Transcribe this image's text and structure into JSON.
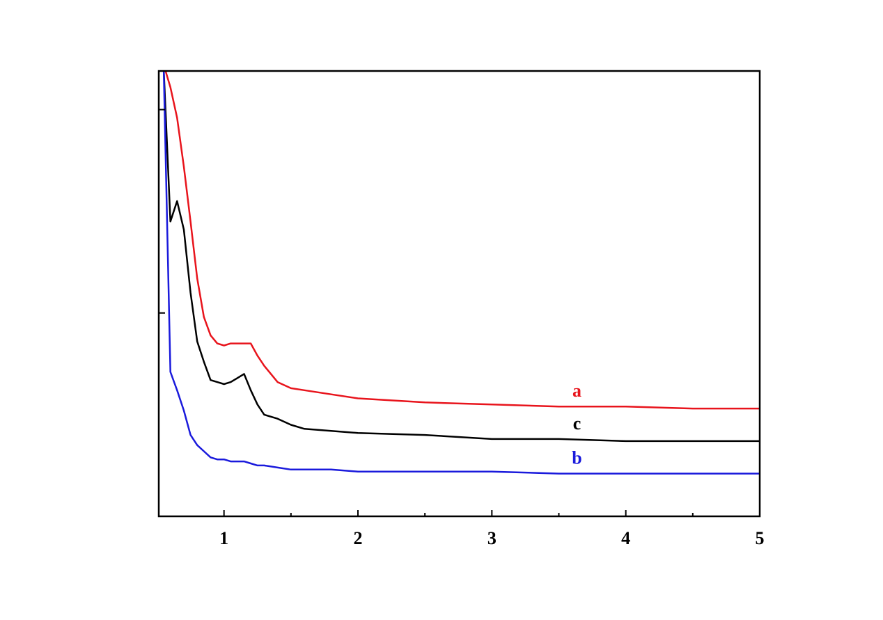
{
  "chart_data": {
    "type": "line",
    "x": [
      0.55,
      0.6,
      0.65,
      0.7,
      0.75,
      0.8,
      0.85,
      0.9,
      0.95,
      1.0,
      1.05,
      1.1,
      1.15,
      1.2,
      1.25,
      1.3,
      1.4,
      1.5,
      1.6,
      1.8,
      2.0,
      2.5,
      3,
      3.5,
      4,
      4.5,
      5
    ],
    "series": [
      {
        "name": "a",
        "color": "#e8141c",
        "values": [
          2.22,
          2.11,
          1.96,
          1.72,
          1.45,
          1.17,
          0.98,
          0.89,
          0.85,
          0.84,
          0.85,
          0.85,
          0.85,
          0.85,
          0.79,
          0.74,
          0.66,
          0.63,
          0.62,
          0.6,
          0.58,
          0.56,
          0.55,
          0.54,
          0.54,
          0.53,
          0.53
        ]
      },
      {
        "name": "c",
        "color": "#000000",
        "values": [
          2.2,
          1.45,
          1.55,
          1.41,
          1.1,
          0.86,
          0.76,
          0.67,
          0.66,
          0.65,
          0.66,
          0.68,
          0.7,
          0.62,
          0.55,
          0.5,
          0.48,
          0.45,
          0.43,
          0.42,
          0.41,
          0.4,
          0.38,
          0.38,
          0.37,
          0.37,
          0.37
        ]
      },
      {
        "name": "b",
        "color": "#1a1adc",
        "values": [
          2.2,
          0.71,
          0.62,
          0.52,
          0.4,
          0.35,
          0.32,
          0.29,
          0.28,
          0.28,
          0.27,
          0.27,
          0.27,
          0.26,
          0.25,
          0.25,
          0.24,
          0.23,
          0.23,
          0.23,
          0.22,
          0.22,
          0.22,
          0.21,
          0.21,
          0.21,
          0.21
        ]
      }
    ],
    "xlim": [
      0.513,
      5
    ],
    "xticks": [
      1,
      2,
      3,
      4,
      5
    ],
    "xticks_minor": [
      1.5,
      2.5,
      3.5,
      4.5
    ],
    "ylim": [
      0,
      2.19
    ],
    "yticks": [
      1,
      2
    ]
  }
}
